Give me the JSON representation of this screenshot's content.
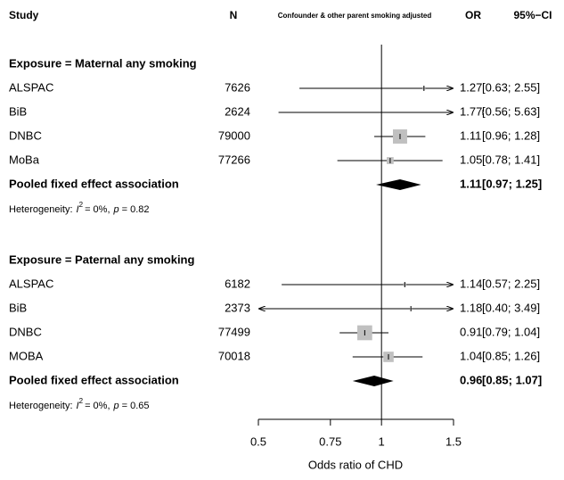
{
  "chart_data": {
    "type": "forest",
    "columns": {
      "study": "Study",
      "n": "N",
      "estimate": "Confounder & other parent smoking adjusted",
      "or": "OR",
      "ci": "95%−CI"
    },
    "x_label": "Odds ratio of CHD",
    "xlim": [
      0.5,
      1.5
    ],
    "xticks": [
      0.5,
      0.75,
      1,
      1.5
    ],
    "log_x": true,
    "reference": 1,
    "color": "#000000",
    "square_color": "#c0c0c0",
    "groups": [
      {
        "label": "Exposure = Maternal any smoking",
        "studies": [
          {
            "name": "ALSPAC",
            "n": 7626,
            "or": 1.27,
            "lower": 0.63,
            "upper": 2.55,
            "ci_label": "[0.63; 2.55]"
          },
          {
            "name": "BiB",
            "n": 2624,
            "or": 1.77,
            "lower": 0.56,
            "upper": 5.63,
            "ci_label": "[0.56; 5.63]"
          },
          {
            "name": "DNBC",
            "n": 79000,
            "or": 1.11,
            "lower": 0.96,
            "upper": 1.28,
            "ci_label": "[0.96; 1.28]"
          },
          {
            "name": "MoBa",
            "n": 77266,
            "or": 1.05,
            "lower": 0.78,
            "upper": 1.41,
            "ci_label": "[0.78; 1.41]"
          }
        ],
        "pooled": {
          "name": "Pooled fixed effect association",
          "or": 1.11,
          "lower": 0.97,
          "upper": 1.25,
          "ci_label": "[0.97; 1.25]"
        },
        "heterogeneity": {
          "prefix": "Heterogeneity:",
          "stat": "I",
          "stat_sup": "2",
          "stat_value": "= 0%,",
          "p_symbol": "p",
          "p_value": "= 0.82"
        }
      },
      {
        "label": "Exposure = Paternal any smoking",
        "studies": [
          {
            "name": "ALSPAC",
            "n": 6182,
            "or": 1.14,
            "lower": 0.57,
            "upper": 2.25,
            "ci_label": "[0.57; 2.25]"
          },
          {
            "name": "BiB",
            "n": 2373,
            "or": 1.18,
            "lower": 0.4,
            "upper": 3.49,
            "ci_label": "[0.40; 3.49]"
          },
          {
            "name": "DNBC",
            "n": 77499,
            "or": 0.91,
            "lower": 0.79,
            "upper": 1.04,
            "ci_label": "[0.79; 1.04]"
          },
          {
            "name": "MOBA",
            "n": 70018,
            "or": 1.04,
            "lower": 0.85,
            "upper": 1.26,
            "ci_label": "[0.85; 1.26]"
          }
        ],
        "pooled": {
          "name": "Pooled fixed effect association",
          "or": 0.96,
          "lower": 0.85,
          "upper": 1.07,
          "ci_label": "[0.85; 1.07]"
        },
        "heterogeneity": {
          "prefix": "Heterogeneity:",
          "stat": "I",
          "stat_sup": "2",
          "stat_value": "= 0%,",
          "p_symbol": "p",
          "p_value": "= 0.65"
        }
      }
    ]
  }
}
